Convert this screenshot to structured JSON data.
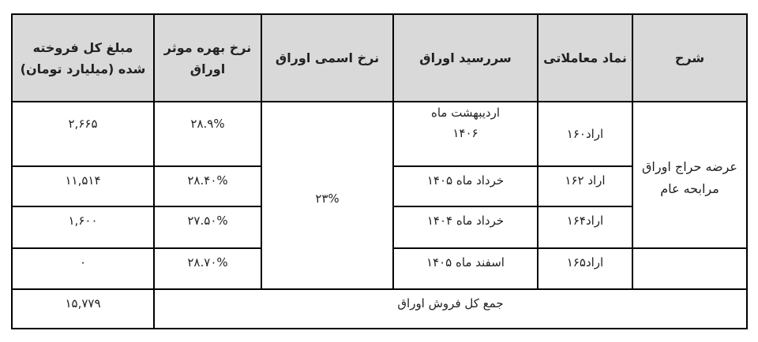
{
  "headers": [
    "شرح",
    "نماد معاملاتی",
    "سررسید اوراق",
    "نرخ اسمی اوراق",
    "نرخ بهره موثر اوراق",
    "مبلغ کل فروخته شده (میلیارد تومان)"
  ],
  "description": "عرضه حراج اوراق مرابحه عام",
  "nominal_rate": "۲۳%",
  "rows": [
    {
      "symbol": "اراد۱۶۰",
      "maturity": "اردیبهشت ماه ۱۴۰۶",
      "effective_rate": "۲۸.۹%",
      "amount": "۲,۶۶۵"
    },
    {
      "symbol": "اراد ۱۶۲",
      "maturity": "خرداد ماه ۱۴۰۵",
      "effective_rate": "۲۸.۴۰%",
      "amount": "۱۱,۵۱۴"
    },
    {
      "symbol": "اراد۱۶۴",
      "maturity": "خرداد ماه ۱۴۰۴",
      "effective_rate": "۲۷.۵۰%",
      "amount": "۱,۶۰۰"
    },
    {
      "symbol": "اراد۱۶۵",
      "maturity": "اسفند ماه ۱۴۰۵",
      "effective_rate": "۲۸.۷۰%",
      "amount": "۰"
    }
  ],
  "total": {
    "label": "جمع کل فروش اوراق",
    "amount": "۱۵,۷۷۹"
  }
}
